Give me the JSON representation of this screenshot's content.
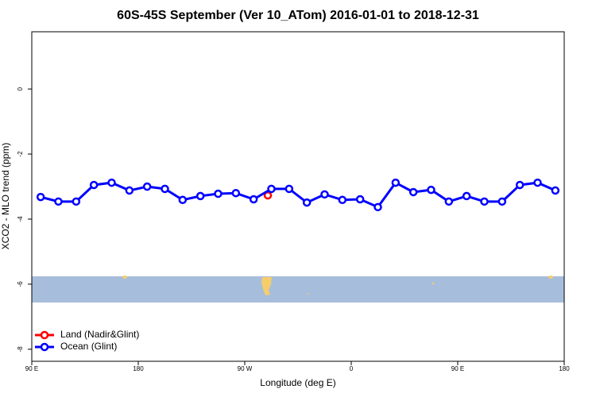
{
  "chart_data": {
    "type": "line",
    "title": "60S-45S September (Ver 10_ATom)   2016-01-01 to 2018-12-31",
    "xlabel": "Longitude (deg E)",
    "ylabel": "XCO2 - MLO trend (ppm)",
    "xlim": [
      90,
      540
    ],
    "xticks": [
      {
        "value": 90,
        "label": "90 E"
      },
      180,
      {
        "value": 270,
        "label": "90 W"
      },
      {
        "value": 360,
        "label": "0"
      },
      {
        "value": 450,
        "label": "90 E"
      },
      {
        "value": 540,
        "label": "180"
      }
    ],
    "ylim": [
      -8.37,
      1.76
    ],
    "yticks": [
      0,
      -2,
      -4,
      -6,
      -8
    ],
    "legend": "bottom-left",
    "series": [
      {
        "name": "Land (Nadir&Glint)",
        "color": "#ff0000",
        "x": [
          289.5
        ],
        "values": [
          -3.27
        ]
      },
      {
        "name": "Ocean (Glint)",
        "color": "#0000ff",
        "x": [
          97.5,
          112.5,
          127.5,
          142.5,
          157.5,
          172.5,
          187.5,
          202.5,
          217.5,
          232.5,
          247.5,
          262.5,
          277.5,
          292.5,
          307.5,
          322.5,
          337.5,
          352.5,
          367.5,
          382.5,
          397.5,
          412.5,
          427.5,
          442.5,
          457.5,
          472.5,
          487.5,
          502.5,
          517.5,
          532.5
        ],
        "values": [
          -3.32,
          -3.46,
          -3.46,
          -2.95,
          -2.88,
          -3.12,
          -3.0,
          -3.07,
          -3.41,
          -3.29,
          -3.22,
          -3.2,
          -3.39,
          -3.07,
          -3.07,
          -3.49,
          -3.24,
          -3.41,
          -3.39,
          -3.63,
          -2.88,
          -3.17,
          -3.1,
          -3.46,
          -3.29,
          -3.46,
          -3.46,
          -2.95,
          -2.88,
          -3.12
        ]
      }
    ]
  }
}
